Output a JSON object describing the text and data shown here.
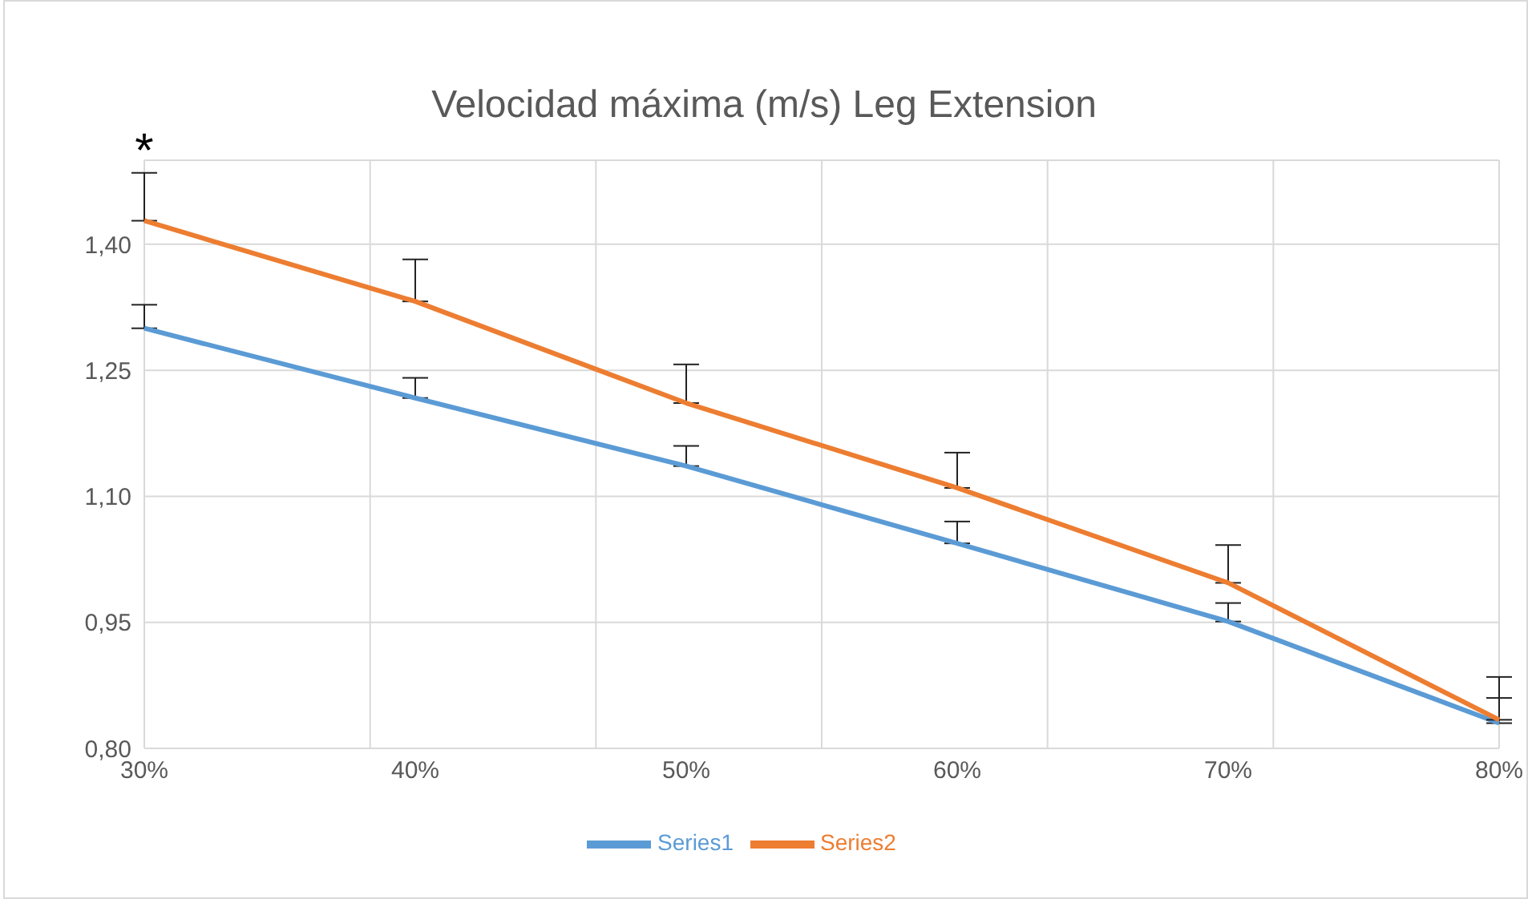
{
  "chart_data": {
    "type": "line",
    "title": "Velocidad máxima (m/s) Leg Extension",
    "categories": [
      "30%",
      "40%",
      "50%",
      "60%",
      "70%",
      "80%"
    ],
    "series": [
      {
        "name": "Series1",
        "color": "#5b9bd5",
        "values": [
          1.3,
          1.217,
          1.136,
          1.044,
          0.951,
          0.83
        ],
        "errors": [
          [
            1.3,
            1.328
          ],
          [
            1.217,
            1.241
          ],
          [
            1.136,
            1.16
          ],
          [
            1.044,
            1.07
          ],
          [
            0.951,
            0.973
          ],
          [
            0.83,
            0.86
          ]
        ]
      },
      {
        "name": "Series2",
        "color": "#ed7d31",
        "values": [
          1.428,
          1.332,
          1.211,
          1.11,
          0.997,
          0.834
        ],
        "errors": [
          [
            1.428,
            1.485
          ],
          [
            1.332,
            1.382
          ],
          [
            1.211,
            1.257
          ],
          [
            1.11,
            1.152
          ],
          [
            0.997,
            1.042
          ],
          [
            0.834,
            0.885
          ]
        ]
      }
    ],
    "ylim": [
      0.8,
      1.5
    ],
    "yticks": [
      {
        "value": 0.8,
        "label": "0,80"
      },
      {
        "value": 0.95,
        "label": "0,95"
      },
      {
        "value": 1.1,
        "label": "1,10"
      },
      {
        "value": 1.25,
        "label": "1,25"
      },
      {
        "value": 1.4,
        "label": "1,40"
      }
    ],
    "grid": true,
    "legend": "bottom",
    "marker": "none",
    "line_style": "solid",
    "annotations": [
      {
        "text": "*",
        "x": "30%",
        "y": 1.485
      }
    ]
  }
}
